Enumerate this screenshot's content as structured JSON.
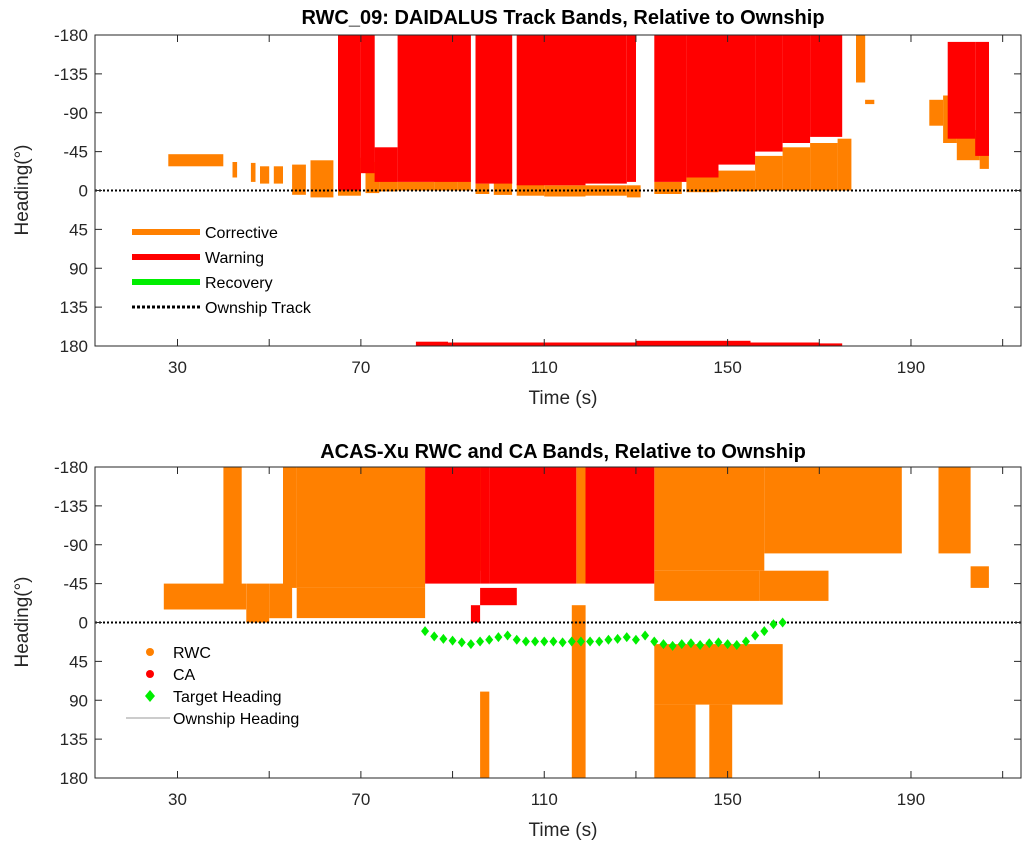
{
  "chart_data": [
    {
      "type": "bar",
      "title": "RWC_09: DAIDALUS Track Bands, Relative to Ownship",
      "xlabel": "Time (s)",
      "ylabel": "Heading(°)",
      "xlim": [
        12,
        214
      ],
      "ylim": [
        -180,
        180
      ],
      "xticks": [
        "30",
        "70",
        "110",
        "150",
        "190"
      ],
      "yticks": [
        "-180",
        "-135",
        "-90",
        "-45",
        "0",
        "45",
        "90",
        "135",
        "180"
      ],
      "grid": false,
      "legend": {
        "placement": "lower-left",
        "entries": [
          {
            "label": "Corrective",
            "color": "#ff8000"
          },
          {
            "label": "Warning",
            "color": "#ff0000"
          },
          {
            "label": "Recovery",
            "color": "#00ee00"
          },
          {
            "label": "Ownship Track",
            "color": "#000000"
          }
        ]
      },
      "series": [
        {
          "name": "Corrective",
          "color": "#ff8000",
          "bands": [
            [
              28,
              40,
              -42,
              -28
            ],
            [
              42,
              43,
              -33,
              -15
            ],
            [
              46,
              47,
              -32,
              -10
            ],
            [
              48,
              50,
              -28,
              -8
            ],
            [
              51,
              53,
              -28,
              -8
            ],
            [
              55,
              58,
              -30,
              5
            ],
            [
              59,
              64,
              -35,
              8
            ],
            [
              65,
              70,
              -38,
              6
            ],
            [
              71,
              74,
              -33,
              3
            ],
            [
              74,
              78,
              -38,
              1
            ],
            [
              78,
              86,
              -10,
              0
            ],
            [
              86,
              91,
              -13,
              0
            ],
            [
              91,
              94,
              -12,
              0
            ],
            [
              95,
              98,
              -8,
              4
            ],
            [
              99,
              103,
              -10,
              5
            ],
            [
              104,
              110,
              -8,
              6
            ],
            [
              110,
              119,
              -6,
              7
            ],
            [
              119,
              128,
              -6,
              6
            ],
            [
              128,
              131,
              -6,
              8
            ],
            [
              134,
              140,
              -10,
              4
            ],
            [
              141,
              148,
              -15,
              2
            ],
            [
              148,
              156,
              -23,
              1
            ],
            [
              156,
              162,
              -40,
              0
            ],
            [
              162,
              168,
              -50,
              0
            ],
            [
              168,
              174,
              -55,
              0
            ],
            [
              174,
              177,
              -60,
              0
            ],
            [
              178,
              180,
              -180,
              -125
            ],
            [
              180,
              182,
              -105,
              -100
            ],
            [
              194,
              197,
              -105,
              -75
            ],
            [
              197,
              200,
              -110,
              -55
            ],
            [
              200,
              205,
              -70,
              -35
            ],
            [
              205,
              207,
              -50,
              -25
            ]
          ]
        },
        {
          "name": "Warning",
          "color": "#ff0000",
          "bands": [
            [
              65,
              70,
              -180,
              0
            ],
            [
              70,
              73,
              -180,
              -20
            ],
            [
              73,
              78,
              -50,
              -10
            ],
            [
              78,
              94,
              -180,
              -10
            ],
            [
              95,
              103,
              -180,
              -8
            ],
            [
              104,
              119,
              -180,
              -6
            ],
            [
              119,
              128,
              -180,
              -8
            ],
            [
              128,
              130,
              -180,
              -10
            ],
            [
              134,
              141,
              -180,
              -10
            ],
            [
              141,
              148,
              -180,
              -15
            ],
            [
              148,
              156,
              -180,
              -30
            ],
            [
              156,
              162,
              -180,
              -45
            ],
            [
              162,
              168,
              -180,
              -55
            ],
            [
              168,
              175,
              -180,
              -62
            ],
            [
              198,
              204,
              -172,
              -60
            ],
            [
              204,
              207,
              -172,
              -40
            ],
            [
              82,
              89,
              175,
              180
            ],
            [
              89,
              110,
              176,
              180
            ],
            [
              110,
              130,
              176,
              180
            ],
            [
              130,
              155,
              174,
              180
            ],
            [
              155,
              170,
              176,
              180
            ],
            [
              170,
              175,
              177,
              180
            ]
          ]
        }
      ],
      "ownship_track": 0
    },
    {
      "type": "scatter",
      "title": "ACAS-Xu RWC and CA Bands, Relative to Ownship",
      "xlabel": "Time (s)",
      "ylabel": "Heading(°)",
      "xlim": [
        12,
        214
      ],
      "ylim": [
        -180,
        180
      ],
      "xticks": [
        "30",
        "70",
        "110",
        "150",
        "190"
      ],
      "yticks": [
        "-180",
        "-135",
        "-90",
        "-45",
        "0",
        "45",
        "90",
        "135",
        "180"
      ],
      "grid": false,
      "legend": {
        "placement": "lower-left",
        "entries": [
          {
            "label": "RWC",
            "color": "#ff8000",
            "marker": "circle"
          },
          {
            "label": "CA",
            "color": "#ff0000",
            "marker": "circle"
          },
          {
            "label": "Target Heading",
            "color": "#00ee00",
            "marker": "diamond"
          },
          {
            "label": "Ownship Heading",
            "color": "#bbbbbb",
            "marker": "line"
          }
        ]
      },
      "series": [
        {
          "name": "RWC",
          "color": "#ff8000",
          "bands": [
            [
              27,
              41,
              -45,
              -15
            ],
            [
              41,
              45,
              -45,
              -15
            ],
            [
              45,
              50,
              -45,
              0
            ],
            [
              50,
              55,
              -45,
              -5
            ],
            [
              40,
              44,
              -180,
              -40
            ],
            [
              53,
              56,
              -180,
              -40
            ],
            [
              56,
              84,
              -180,
              -40
            ],
            [
              56,
              84,
              -40,
              -5
            ],
            [
              95,
              97,
              -180,
              -60
            ],
            [
              96,
              98,
              80,
              180
            ],
            [
              117,
              119,
              -180,
              -45
            ],
            [
              116,
              119,
              -20,
              180
            ],
            [
              134,
              143,
              -180,
              -60
            ],
            [
              143,
              158,
              -180,
              -60
            ],
            [
              158,
              188,
              -180,
              -80
            ],
            [
              134,
              157,
              -60,
              -25
            ],
            [
              157,
              172,
              -60,
              -25
            ],
            [
              134,
              162,
              25,
              95
            ],
            [
              134,
              143,
              95,
              180
            ],
            [
              146,
              151,
              95,
              180
            ],
            [
              196,
              203,
              -180,
              -80
            ],
            [
              203,
              207,
              -65,
              -40
            ]
          ]
        },
        {
          "name": "CA",
          "color": "#ff0000",
          "bands": [
            [
              84,
              96,
              -180,
              -45
            ],
            [
              96,
              98,
              -180,
              -45
            ],
            [
              98,
              117,
              -180,
              -45
            ],
            [
              119,
              134,
              -180,
              -45
            ],
            [
              96,
              104,
              -40,
              -20
            ],
            [
              94,
              96,
              -20,
              0
            ]
          ]
        },
        {
          "name": "Target Heading",
          "color": "#00ee00",
          "x": [
            84,
            86,
            88,
            90,
            92,
            94,
            96,
            98,
            100,
            102,
            104,
            106,
            108,
            110,
            112,
            114,
            116,
            118,
            120,
            122,
            124,
            126,
            128,
            130,
            132,
            134,
            136,
            138,
            140,
            142,
            144,
            146,
            148,
            150,
            152,
            154,
            156,
            158,
            160,
            162
          ],
          "y": [
            10,
            16,
            19,
            21,
            23,
            25,
            22,
            20,
            17,
            15,
            20,
            22,
            22,
            22,
            22,
            23,
            22,
            22,
            22,
            22,
            20,
            19,
            17,
            20,
            15,
            22,
            25,
            27,
            25,
            24,
            26,
            24,
            23,
            25,
            26,
            22,
            15,
            10,
            2,
            0
          ]
        }
      ],
      "ownship_heading": 0
    }
  ]
}
